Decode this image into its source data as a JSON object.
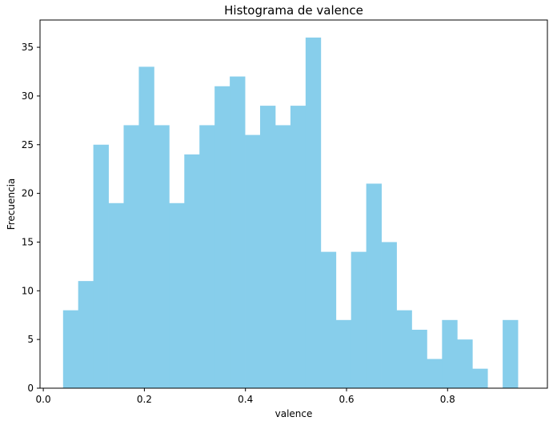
{
  "chart_data": {
    "type": "bar",
    "title": "Histograma de valence",
    "xlabel": "valence",
    "ylabel": "Frecuencia",
    "xlim": [
      -0.0065,
      0.9975
    ],
    "ylim": [
      0,
      37.8
    ],
    "xticks": [
      0.0,
      0.2,
      0.4,
      0.6,
      0.8
    ],
    "xtick_labels": [
      "0.0",
      "0.2",
      "0.4",
      "0.6",
      "0.8"
    ],
    "yticks": [
      0,
      5,
      10,
      15,
      20,
      25,
      30,
      35
    ],
    "ytick_labels": [
      "0",
      "5",
      "10",
      "15",
      "20",
      "25",
      "30",
      "35"
    ],
    "bin_edges": [
      0.0391,
      0.069,
      0.099,
      0.129,
      0.159,
      0.189,
      0.219,
      0.249,
      0.279,
      0.309,
      0.339,
      0.369,
      0.399,
      0.429,
      0.459,
      0.489,
      0.519,
      0.549,
      0.579,
      0.609,
      0.639,
      0.669,
      0.699,
      0.729,
      0.759,
      0.789,
      0.819,
      0.849,
      0.879,
      0.909,
      0.939
    ],
    "values": [
      8,
      11,
      25,
      19,
      27,
      33,
      27,
      19,
      24,
      27,
      31,
      32,
      26,
      29,
      27,
      29,
      36,
      14,
      7,
      14,
      21,
      15,
      8,
      6,
      3,
      7,
      5,
      2,
      0,
      7
    ],
    "bar_color": "#87ceeb",
    "grid": false,
    "legend": "none"
  }
}
